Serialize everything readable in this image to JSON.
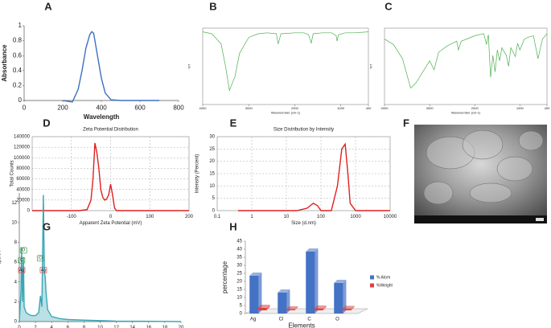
{
  "chart_data": [
    {
      "type": "line",
      "panel": "A",
      "xlabel": "Wavelength",
      "ylabel": "Absorbance",
      "color": "#3f6fbf",
      "x": [
        200,
        250,
        280,
        300,
        320,
        340,
        350,
        360,
        380,
        400,
        420,
        450,
        500,
        600,
        700
      ],
      "values": [
        0,
        -0.02,
        0.15,
        0.4,
        0.7,
        0.88,
        0.92,
        0.9,
        0.6,
        0.3,
        0.1,
        0.01,
        0,
        0,
        0
      ],
      "xlim": [
        0,
        800
      ],
      "xticks": [
        0,
        200,
        400,
        600,
        800
      ],
      "ylim": [
        0,
        1
      ],
      "yticks": [
        0,
        0.2,
        0.4,
        0.6,
        0.8,
        1
      ]
    },
    {
      "type": "line",
      "panel": "B",
      "xlabel": "Wavenumber (cm-1)",
      "ylabel": "%T",
      "color": "#4caf50",
      "frame": true,
      "x": [
        4000,
        3800,
        3600,
        3500,
        3420,
        3300,
        3200,
        3000,
        2800,
        2600,
        2400,
        2360,
        2300,
        2000,
        1800,
        1700,
        1640,
        1600,
        1400,
        1200,
        1100,
        1080,
        1050,
        900,
        700,
        400
      ],
      "values": [
        98,
        96,
        85,
        60,
        35,
        50,
        75,
        92,
        96,
        97,
        96,
        85,
        96,
        97,
        97,
        95,
        86,
        96,
        97,
        97,
        94,
        88,
        95,
        97,
        97,
        98
      ],
      "xlim": [
        4000,
        400
      ],
      "xticks": [
        4000,
        3000,
        2000,
        1000,
        400
      ],
      "ylim": [
        20,
        102
      ]
    },
    {
      "type": "line",
      "panel": "C",
      "xlabel": "Wavenumber (cm-1)",
      "ylabel": "%T",
      "color": "#4caf50",
      "frame": true,
      "x": [
        4000,
        3800,
        3600,
        3420,
        3300,
        3000,
        2900,
        2800,
        2600,
        2400,
        2360,
        2300,
        2000,
        1800,
        1740,
        1700,
        1650,
        1600,
        1550,
        1500,
        1450,
        1400,
        1300,
        1250,
        1200,
        1100,
        1050,
        1000,
        900,
        800,
        700,
        600,
        500,
        400
      ],
      "values": [
        90,
        85,
        72,
        45,
        50,
        70,
        62,
        78,
        84,
        88,
        80,
        88,
        93,
        95,
        85,
        94,
        55,
        75,
        60,
        80,
        70,
        82,
        75,
        65,
        82,
        74,
        86,
        80,
        90,
        92,
        93,
        72,
        90,
        95
      ],
      "xlim": [
        4000,
        400
      ],
      "xticks": [
        4000,
        3000,
        2000,
        1000,
        400
      ],
      "ylim": [
        30,
        100
      ]
    },
    {
      "type": "line",
      "panel": "D",
      "title": "Zeta Potential Distribution",
      "xlabel": "Apparent Zeta Potential (mV)",
      "ylabel": "Total Counts",
      "color": "#e02020",
      "frame": true,
      "grid": true,
      "x": [
        -200,
        -120,
        -80,
        -60,
        -50,
        -45,
        -40,
        -35,
        -30,
        -25,
        -20,
        -15,
        -10,
        -5,
        0,
        5,
        10,
        15,
        30,
        200
      ],
      "values": [
        0,
        0,
        0,
        2000,
        20000,
        60000,
        128000,
        110000,
        80000,
        40000,
        25000,
        20000,
        22000,
        30000,
        50000,
        30000,
        5000,
        0,
        0,
        0
      ],
      "xlim": [
        -200,
        200
      ],
      "xticks": [
        -100,
        0,
        100,
        200
      ],
      "ylim": [
        0,
        140000
      ],
      "yticks": [
        0,
        20000,
        40000,
        60000,
        80000,
        100000,
        120000,
        140000
      ]
    },
    {
      "type": "line",
      "panel": "E",
      "title": "Size Distribution by Intensity",
      "xlabel": "Size (d.nm)",
      "ylabel": "Intensity (Percent)",
      "color": "#e02020",
      "frame": true,
      "grid": true,
      "xlog": true,
      "x": [
        0.4,
        20,
        40,
        60,
        80,
        100,
        150,
        200,
        300,
        400,
        500,
        600,
        700,
        1000,
        10000
      ],
      "values": [
        0,
        0,
        1,
        3,
        2,
        0,
        0,
        0,
        10,
        25,
        27,
        15,
        3,
        0,
        0
      ],
      "xlim": [
        0.1,
        10000
      ],
      "xticks": [
        0.1,
        1,
        10,
        100,
        1000,
        10000
      ],
      "ylim": [
        0,
        30
      ],
      "yticks": [
        0,
        5,
        10,
        15,
        20,
        25,
        30
      ]
    },
    {
      "type": "image",
      "panel": "F"
    },
    {
      "type": "line",
      "panel": "G",
      "ylabel": "cps/eV",
      "color": "#3aa6b5",
      "x": [
        0,
        0.2,
        0.28,
        0.4,
        0.52,
        0.6,
        0.8,
        1,
        1.5,
        2,
        2.4,
        2.62,
        2.8,
        2.98,
        3.1,
        3.2,
        3.3,
        3.5,
        4,
        5,
        6,
        8,
        10,
        12,
        15,
        20
      ],
      "values": [
        0,
        3,
        7.5,
        2,
        6.5,
        1.5,
        1,
        0.8,
        0.6,
        0.6,
        0.9,
        2.6,
        1.5,
        12.8,
        5,
        4.5,
        3,
        1.2,
        0.5,
        0.3,
        0.2,
        0.15,
        0.1,
        0.05,
        0.03,
        0
      ],
      "xlim": [
        0,
        20
      ],
      "xticks": [
        0,
        2,
        4,
        6,
        8,
        10,
        12,
        14,
        16,
        18,
        20
      ],
      "ylim": [
        0,
        13
      ],
      "yticks": [
        0,
        2,
        4,
        6,
        8,
        10,
        12
      ],
      "annotations": [
        {
          "text": "O",
          "x": 0.52,
          "color": "#3cb44b"
        },
        {
          "text": "C",
          "x": 0.28,
          "color": "#3cb44b"
        },
        {
          "text": "Ag",
          "x": 0.3,
          "color": "#e05050"
        },
        {
          "text": "Cl",
          "x": 2.62,
          "color": "#3cb44b"
        },
        {
          "text": "Ag",
          "x": 2.98,
          "color": "#e05050"
        }
      ]
    },
    {
      "type": "bar",
      "panel": "H",
      "xlabel": "Elements",
      "ylabel": "percentage",
      "categories": [
        "Ag",
        "Cl",
        "C",
        "O"
      ],
      "series": [
        {
          "name": "% Atom",
          "color": "#4472c4",
          "values": [
            23.5,
            13,
            38.5,
            19
          ]
        },
        {
          "name": "%Weight",
          "color": "#e04040",
          "values": [
            1.5,
            0.5,
            1,
            0.8
          ]
        }
      ],
      "ylim": [
        0,
        45
      ],
      "yticks": [
        0,
        5,
        10,
        15,
        20,
        25,
        30,
        35,
        40,
        45
      ]
    }
  ]
}
